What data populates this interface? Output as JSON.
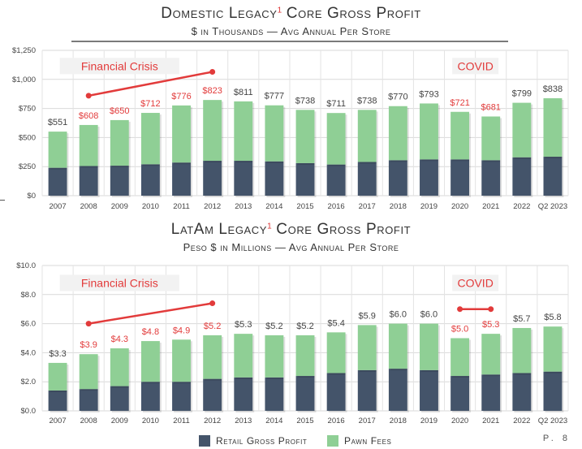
{
  "page": {
    "number": "P. 8"
  },
  "colors": {
    "retail": "#44546a",
    "pawn": "#8fcf95",
    "highlight": "#e23b3b",
    "annotation_bg": "#f2f2f2",
    "text": "#3a3a3a"
  },
  "legend": {
    "retail": "Retail Gross Profit",
    "pawn": "Pawn Fees"
  },
  "chart_data": [
    {
      "type": "bar",
      "stacked": true,
      "title": "Domestic Legacy",
      "title_superscript": "1",
      "title_rest": "Core Gross Profit",
      "subtitle": "$ in Thousands — Avg Annual Per Store",
      "categories": [
        "2007",
        "2008",
        "2009",
        "2010",
        "2011",
        "2012",
        "2013",
        "2014",
        "2015",
        "2016",
        "2017",
        "2018",
        "2019",
        "2020",
        "2021",
        "2022",
        "Q2 2023"
      ],
      "y_ticks": [
        "$0",
        "$250",
        "$500",
        "$750",
        "$1,000",
        "$1,250"
      ],
      "ylim": [
        0,
        1250
      ],
      "series": [
        {
          "name": "Retail Gross Profit",
          "values": [
            240,
            255,
            258,
            270,
            285,
            300,
            300,
            295,
            280,
            268,
            290,
            305,
            312,
            312,
            305,
            330,
            335
          ]
        },
        {
          "name": "Pawn Fees",
          "values": [
            311,
            353,
            392,
            442,
            491,
            523,
            511,
            482,
            458,
            443,
            448,
            465,
            481,
            409,
            376,
            469,
            503
          ]
        }
      ],
      "total_labels": [
        "$551",
        "$608",
        "$650",
        "$712",
        "$776",
        "$823",
        "$811",
        "$777",
        "$738",
        "$711",
        "$738",
        "$770",
        "$793",
        "$721",
        "$681",
        "$799",
        "$838"
      ],
      "total_values": [
        551,
        608,
        650,
        712,
        776,
        823,
        811,
        777,
        738,
        711,
        738,
        770,
        793,
        721,
        681,
        799,
        838
      ],
      "highlighted": [
        false,
        true,
        true,
        true,
        true,
        true,
        false,
        false,
        false,
        false,
        false,
        false,
        false,
        true,
        true,
        false,
        false
      ],
      "annotations": [
        {
          "text": "Financial Crisis",
          "from_index": 1,
          "to_index": 5,
          "line_start": 860,
          "line_end": 1065,
          "box_x_index": 2,
          "box_y": 1115
        },
        {
          "text": "COVID",
          "from_index": 13,
          "to_index": 14,
          "line_start": 1110,
          "line_end": 1110,
          "box_x_index": 13.5,
          "box_y": 1115
        }
      ],
      "grid": true
    },
    {
      "type": "bar",
      "stacked": true,
      "title": "LatAm Legacy",
      "title_superscript": "1",
      "title_rest": "Core Gross Profit",
      "subtitle": "Peso $ in Millions — Avg Annual Per Store",
      "categories": [
        "2007",
        "2008",
        "2009",
        "2010",
        "2011",
        "2012",
        "2013",
        "2014",
        "2015",
        "2016",
        "2017",
        "2018",
        "2019",
        "2020",
        "2021",
        "2022",
        "Q2 2023"
      ],
      "y_ticks": [
        "$0.0",
        "$2.0",
        "$4.0",
        "$6.0",
        "$8.0",
        "$10.0"
      ],
      "ylim": [
        0,
        10
      ],
      "series": [
        {
          "name": "Retail Gross Profit",
          "values": [
            1.4,
            1.5,
            1.7,
            2.0,
            2.0,
            2.2,
            2.3,
            2.3,
            2.4,
            2.6,
            2.8,
            2.9,
            2.8,
            2.4,
            2.5,
            2.6,
            2.7
          ]
        },
        {
          "name": "Pawn Fees",
          "values": [
            1.9,
            2.4,
            2.6,
            2.8,
            2.9,
            3.0,
            3.0,
            2.9,
            2.8,
            2.8,
            3.1,
            3.1,
            3.2,
            2.6,
            2.8,
            3.1,
            3.1
          ]
        }
      ],
      "total_labels": [
        "$3.3",
        "$3.9",
        "$4.3",
        "$4.8",
        "$4.9",
        "$5.2",
        "$5.3",
        "$5.2",
        "$5.2",
        "$5.4",
        "$5.9",
        "$6.0",
        "$6.0",
        "$5.0",
        "$5.3",
        "$5.7",
        "$5.8"
      ],
      "total_values": [
        3.3,
        3.9,
        4.3,
        4.8,
        4.9,
        5.2,
        5.3,
        5.2,
        5.2,
        5.4,
        5.9,
        6.0,
        6.0,
        5.0,
        5.3,
        5.7,
        5.8
      ],
      "highlighted": [
        false,
        true,
        true,
        true,
        true,
        true,
        false,
        false,
        false,
        false,
        false,
        false,
        false,
        true,
        true,
        false,
        false
      ],
      "annotations": [
        {
          "text": "Financial Crisis",
          "from_index": 1,
          "to_index": 5,
          "line_start": 6.0,
          "line_end": 7.4,
          "box_x_index": 2,
          "box_y": 8.8
        },
        {
          "text": "COVID",
          "from_index": 13,
          "to_index": 14,
          "line_start": 7.0,
          "line_end": 7.0,
          "box_x_index": 13.5,
          "box_y": 8.8
        }
      ],
      "grid": true
    }
  ]
}
